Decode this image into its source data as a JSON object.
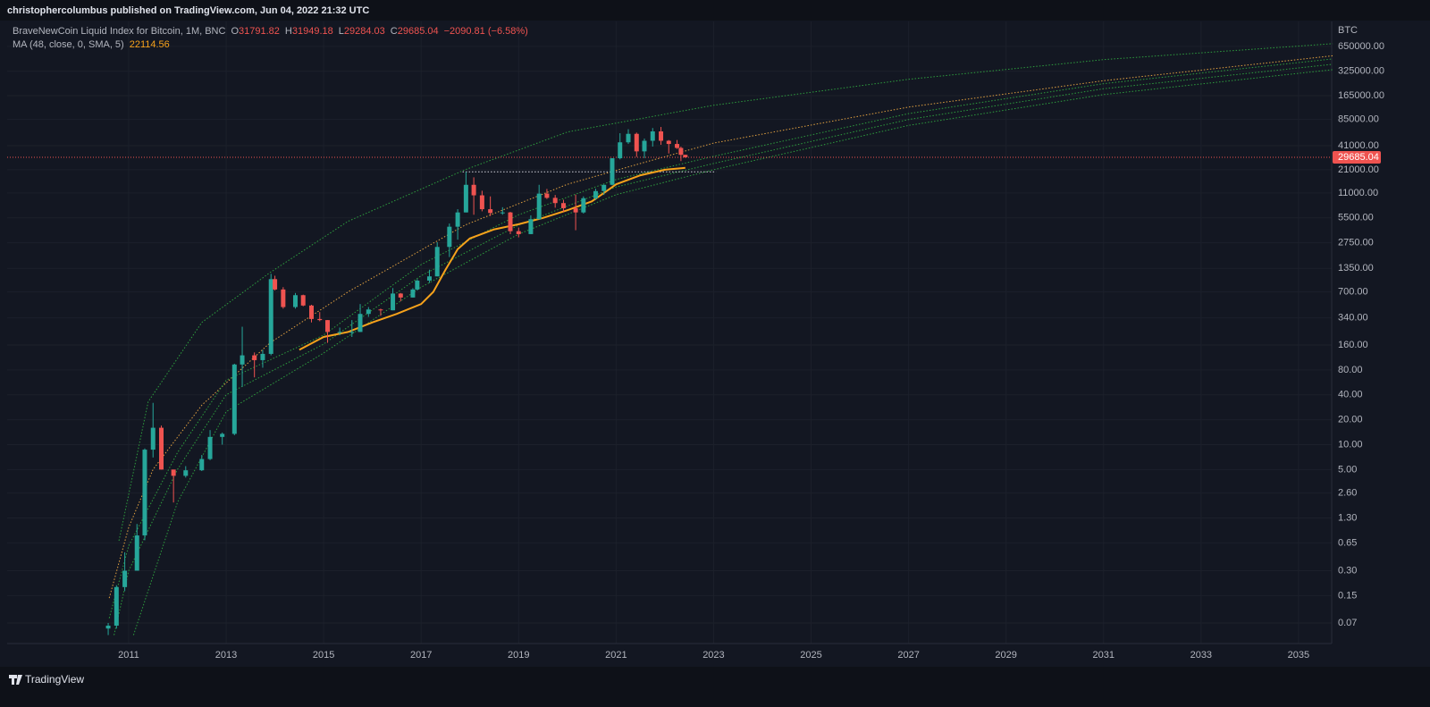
{
  "publisher": "christophercolumbus published on TradingView.com, Jun 04, 2022 21:32 UTC",
  "footer": "TradingView",
  "chart_data": {
    "type": "candlestick",
    "log_scale": true,
    "grid": true,
    "axis_unit": "BTC",
    "header": {
      "symbol": "BraveNewCoin Liquid Index for Bitcoin, 1M, BNC",
      "ohlc": [
        {
          "key": "O",
          "value": "31791.82"
        },
        {
          "key": "H",
          "value": "31949.18"
        },
        {
          "key": "L",
          "value": "29284.03"
        },
        {
          "key": "C",
          "value": "29685.04"
        }
      ],
      "change": "−2090.81 (−6.58%)",
      "color": "#ef5350"
    },
    "up_color": "#26a69a",
    "down_color": "#ef5350",
    "x": [
      2010.58,
      2010.75,
      2010.92,
      2011.17,
      2011.33,
      2011.5,
      2011.67,
      2011.92,
      2012.17,
      2012.5,
      2012.67,
      2012.92,
      2013.17,
      2013.33,
      2013.58,
      2013.75,
      2013.92,
      2014.0,
      2014.17,
      2014.42,
      2014.58,
      2014.75,
      2014.92,
      2015.08,
      2015.33,
      2015.58,
      2015.75,
      2015.92,
      2016.17,
      2016.42,
      2016.58,
      2016.83,
      2016.92,
      2017.17,
      2017.33,
      2017.58,
      2017.75,
      2017.92,
      2018.08,
      2018.25,
      2018.42,
      2018.67,
      2018.83,
      2019.0,
      2019.25,
      2019.42,
      2019.58,
      2019.75,
      2019.92,
      2020.17,
      2020.33,
      2020.58,
      2020.75,
      2020.92,
      2021.08,
      2021.25,
      2021.42,
      2021.58,
      2021.75,
      2021.92,
      2022.08,
      2022.25,
      2022.33,
      2022.42
    ],
    "open": [
      0.06,
      0.065,
      0.19,
      0.3,
      0.8,
      8.7,
      16,
      5,
      4.2,
      4.9,
      6.7,
      12.4,
      13.5,
      93,
      120,
      105,
      125,
      1000,
      750,
      460,
      640,
      480,
      330,
      320,
      230,
      230,
      230,
      380,
      430,
      420,
      670,
      600,
      750,
      960,
      1080,
      2450,
      4300,
      6400,
      13800,
      10300,
      7000,
      6300,
      6400,
      3800,
      3500,
      5300,
      10800,
      9600,
      8300,
      7200,
      6400,
      9500,
      11600,
      13800,
      28900,
      45000,
      57000,
      35000,
      47000,
      61000,
      47000,
      43000,
      38500,
      31791.82
    ],
    "high": [
      0.07,
      0.2,
      0.5,
      1.1,
      9,
      32,
      17,
      5,
      5.5,
      7.5,
      15,
      14,
      95,
      266,
      130,
      140,
      1160,
      1100,
      800,
      680,
      650,
      490,
      400,
      320,
      260,
      320,
      500,
      460,
      440,
      780,
      680,
      780,
      1000,
      1300,
      2800,
      4700,
      7000,
      19800,
      17000,
      11700,
      10000,
      7400,
      6500,
      4200,
      5900,
      13800,
      12300,
      10400,
      9100,
      10500,
      10000,
      12400,
      13900,
      29000,
      58000,
      64800,
      59000,
      50000,
      67000,
      69000,
      48000,
      48000,
      40000,
      31949.18
    ],
    "low": [
      0.05,
      0.06,
      0.17,
      0.3,
      0.7,
      7,
      5,
      2,
      4,
      4.8,
      6.5,
      10,
      13,
      50,
      65,
      85,
      120,
      730,
      440,
      440,
      470,
      300,
      310,
      170,
      210,
      200,
      230,
      350,
      360,
      420,
      540,
      600,
      730,
      900,
      1080,
      1850,
      3000,
      6400,
      6000,
      6600,
      5800,
      6000,
      3500,
      3200,
      3500,
      5300,
      9300,
      7300,
      6500,
      3900,
      6200,
      9000,
      10400,
      13600,
      28000,
      43000,
      30000,
      29000,
      40000,
      42000,
      33000,
      37500,
      26700,
      29284.03
    ],
    "close": [
      0.065,
      0.19,
      0.3,
      0.8,
      8.7,
      16,
      5,
      4.2,
      4.9,
      6.7,
      12.4,
      13.5,
      93,
      120,
      105,
      125,
      1000,
      750,
      460,
      640,
      480,
      330,
      320,
      230,
      230,
      230,
      380,
      430,
      420,
      670,
      600,
      750,
      960,
      1080,
      2450,
      4300,
      6400,
      13800,
      10300,
      7000,
      6300,
      6400,
      3800,
      3500,
      5300,
      10800,
      9600,
      8300,
      7200,
      6400,
      9500,
      11600,
      13800,
      28900,
      45000,
      57000,
      35000,
      47000,
      61000,
      47000,
      43000,
      38500,
      31800,
      29685.04
    ],
    "ma": {
      "label": "MA (48, close, 0, SMA, 5)",
      "value_label": "22114.56",
      "color": "#f7a21b",
      "x": [
        2014.5,
        2015.0,
        2015.5,
        2016.0,
        2016.5,
        2017.0,
        2017.25,
        2017.5,
        2017.75,
        2018.0,
        2018.5,
        2019.0,
        2019.5,
        2020.0,
        2020.5,
        2020.75,
        2021.0,
        2021.5,
        2022.0,
        2022.42
      ],
      "values": [
        140,
        200,
        230,
        300,
        380,
        500,
        700,
        1300,
        2300,
        3100,
        4000,
        4600,
        5500,
        6800,
        8700,
        11000,
        14000,
        18000,
        21000,
        22114.56
      ]
    },
    "bands": [
      {
        "color": "#2e9e3e",
        "x": [
          2010.8,
          2011.4,
          2012.5,
          2013.9,
          2015.5,
          2017.9,
          2020,
          2023,
          2027,
          2031,
          2035.7
        ],
        "values": [
          0.69,
          33,
          300,
          1200,
          5000,
          21000,
          60000,
          126000,
          260000,
          450000,
          700000
        ]
      },
      {
        "color": "#e0a040",
        "x": [
          2010.6,
          2011,
          2011.5,
          2012.5,
          2013.9,
          2015.5,
          2017.9,
          2020,
          2021.5,
          2023,
          2027,
          2031,
          2035.7
        ],
        "values": [
          0.14,
          1.0,
          5,
          30,
          170,
          700,
          4500,
          14000,
          25000,
          44000,
          120000,
          250000,
          500000
        ]
      },
      {
        "color": "#2e9e3e",
        "x": [
          2010.6,
          2011,
          2012,
          2013,
          2015,
          2017,
          2019,
          2021,
          2023,
          2027,
          2031,
          2035.7
        ],
        "values": [
          0.08,
          0.6,
          8,
          60,
          211,
          1500,
          6000,
          16000,
          30500,
          100000,
          230000,
          459000
        ]
      },
      {
        "color": "#2e9e3e",
        "x": [
          2010.7,
          2011,
          2012,
          2013,
          2015,
          2017,
          2019,
          2021,
          2023,
          2027,
          2031,
          2035.7
        ],
        "values": [
          0.05,
          0.3,
          5,
          40,
          164,
          1100,
          4500,
          13000,
          25000,
          85000,
          200000,
          395000
        ]
      },
      {
        "color": "#2e9e3e",
        "x": [
          2011.1,
          2012,
          2013,
          2015,
          2017,
          2019,
          2021,
          2023,
          2027,
          2031,
          2035.7
        ],
        "values": [
          0.05,
          2,
          25,
          128,
          800,
          3500,
          10500,
          21000,
          72000,
          170000,
          340000
        ]
      }
    ],
    "ath_line": {
      "value": 19800,
      "x": [
        2017.85,
        2023.05
      ]
    },
    "last_price": {
      "value": 29685.04,
      "label": "29685.04",
      "color": "#ef5350"
    },
    "xlim": [
      2008.507,
      2035.68
    ],
    "xticks": [
      2011,
      2013,
      2015,
      2017,
      2019,
      2021,
      2023,
      2025,
      2027,
      2029,
      2031,
      2033,
      2035
    ],
    "ylim": [
      0.0395,
      1300000
    ],
    "yticks": [
      {
        "value": 650000,
        "label": "650000.00"
      },
      {
        "value": 325000,
        "label": "325000.00"
      },
      {
        "value": 165000,
        "label": "165000.00"
      },
      {
        "value": 85000,
        "label": "85000.00"
      },
      {
        "value": 41000,
        "label": "41000.00"
      },
      {
        "value": 21000,
        "label": "21000.00"
      },
      {
        "value": 11000,
        "label": "11000.00"
      },
      {
        "value": 5500,
        "label": "5500.00"
      },
      {
        "value": 2750,
        "label": "2750.00"
      },
      {
        "value": 1350,
        "label": "1350.00"
      },
      {
        "value": 700,
        "label": "700.00"
      },
      {
        "value": 340,
        "label": "340.00"
      },
      {
        "value": 160,
        "label": "160.00"
      },
      {
        "value": 80,
        "label": "80.00"
      },
      {
        "value": 40,
        "label": "40.00"
      },
      {
        "value": 20,
        "label": "20.00"
      },
      {
        "value": 10,
        "label": "10.00"
      },
      {
        "value": 5,
        "label": "5.00"
      },
      {
        "value": 2.6,
        "label": "2.60"
      },
      {
        "value": 1.3,
        "label": "1.30"
      },
      {
        "value": 0.65,
        "label": "0.65"
      },
      {
        "value": 0.3,
        "label": "0.30"
      },
      {
        "value": 0.15,
        "label": "0.15"
      },
      {
        "value": 0.07,
        "label": "0.07"
      }
    ]
  }
}
